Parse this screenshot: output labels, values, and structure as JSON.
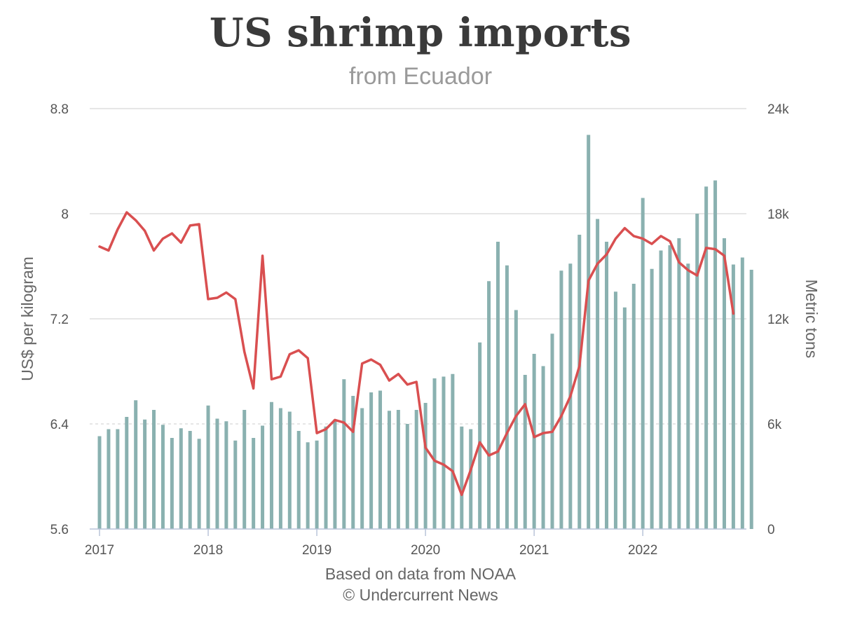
{
  "chart_data": {
    "type": "bar",
    "title": "US shrimp imports",
    "subtitle": "from Ecuador",
    "ylabel_left": "US$ per kilogram",
    "ylabel_right": "Metric tons",
    "ylim_left": [
      5.6,
      8.8
    ],
    "ylim_right": [
      0,
      24000
    ],
    "left_ticks": [
      "5.6",
      "6.4",
      "7.2",
      "8",
      "8.8"
    ],
    "left_tick_values": [
      5.6,
      6.4,
      7.2,
      8.0,
      8.8
    ],
    "right_ticks": [
      "0",
      "6k",
      "12k",
      "18k",
      "24k"
    ],
    "right_tick_values": [
      0,
      6000,
      12000,
      18000,
      24000
    ],
    "x_ticks": [
      "2017",
      "2018",
      "2019",
      "2020",
      "2021",
      "2022"
    ],
    "grid": true,
    "x_start": "2017-01",
    "series": [
      {
        "type": "bar",
        "axis": "right",
        "color": "#8ab1b0",
        "values": [
          5300,
          5700,
          5700,
          6400,
          7350,
          6250,
          6800,
          5950,
          5200,
          5750,
          5600,
          5150,
          7050,
          6300,
          6150,
          5050,
          6800,
          5200,
          5900,
          7250,
          6900,
          6700,
          5600,
          4950,
          5050,
          5850,
          6250,
          8550,
          7600,
          6900,
          7800,
          7900,
          6750,
          6800,
          6000,
          6800,
          7200,
          8600,
          8700,
          8850,
          5850,
          5700,
          10650,
          14150,
          16400,
          15050,
          12500,
          8800,
          10000,
          9300,
          11150,
          14750,
          15150,
          16800,
          22500,
          17700,
          16400,
          13550,
          12650,
          14000,
          18900,
          14850,
          15900,
          16200,
          16600,
          15150,
          18000,
          19550,
          19900,
          16600,
          15100,
          15500,
          14800
        ],
        "unit": "Metric tons"
      },
      {
        "type": "line",
        "axis": "left",
        "color": "#d94f50",
        "values": [
          7.75,
          7.72,
          7.88,
          8.01,
          7.95,
          7.87,
          7.72,
          7.81,
          7.85,
          7.78,
          7.91,
          7.92,
          7.35,
          7.36,
          7.4,
          7.35,
          6.95,
          6.67,
          7.68,
          6.74,
          6.76,
          6.93,
          6.96,
          6.9,
          6.33,
          6.36,
          6.43,
          6.41,
          6.34,
          6.86,
          6.89,
          6.85,
          6.73,
          6.78,
          6.7,
          6.72,
          6.22,
          6.12,
          6.09,
          6.04,
          5.86,
          6.05,
          6.26,
          6.16,
          6.19,
          6.33,
          6.46,
          6.55,
          6.3,
          6.33,
          6.34,
          6.46,
          6.61,
          6.84,
          7.49,
          7.62,
          7.69,
          7.81,
          7.89,
          7.83,
          7.81,
          7.77,
          7.83,
          7.79,
          7.63,
          7.57,
          7.53,
          7.74,
          7.73,
          7.68,
          7.24
        ],
        "note_first_value_approx": true
      }
    ]
  },
  "footer": {
    "source": "Based on data from NOAA",
    "copyright": "© Undercurrent News"
  }
}
